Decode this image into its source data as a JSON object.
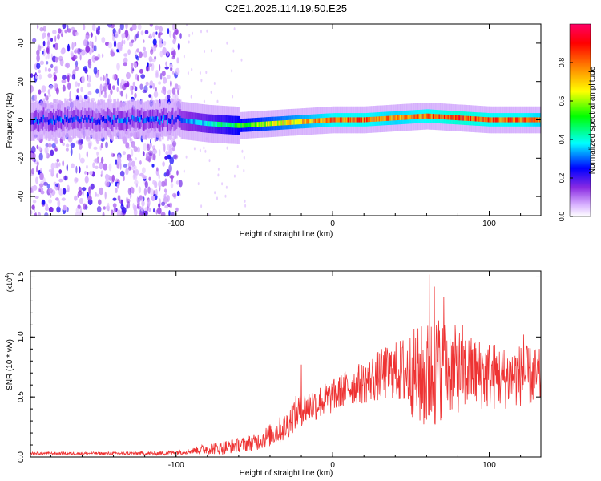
{
  "figure_title": "C2E1.2025.114.19.50.E25",
  "chart_data": [
    {
      "type": "heatmap",
      "title": "C2E1.2025.114.19.50.E25",
      "xlabel": "Height of straight line (km)",
      "ylabel": "Frequency (Hz)",
      "xlim": [
        -193,
        133
      ],
      "ylim": [
        -50,
        50
      ],
      "x_ticks": [
        -100,
        0,
        100
      ],
      "y_ticks": [
        -40,
        -20,
        0,
        20,
        40
      ],
      "x_tick_labels": [
        "-100",
        "0",
        "100"
      ],
      "y_tick_labels": [
        "-40",
        "-20",
        "0",
        "20",
        "40"
      ],
      "colorbar": {
        "label": "Normalized spectral amplitude",
        "range": [
          0,
          1
        ],
        "ticks": [
          0.0,
          0.2,
          0.4,
          0.6,
          0.8
        ],
        "tick_labels": [
          "0.0",
          "0.2",
          "0.4",
          "0.6",
          "0.8"
        ],
        "colors": [
          "#ffffff",
          "#d9b3ff",
          "#8a2be2",
          "#0000ff",
          "#00ffff",
          "#00ff00",
          "#ffff00",
          "#ff8000",
          "#ff0000",
          "#ff0066"
        ]
      },
      "ridge_line": {
        "description_values_x": [
          -100,
          -80,
          -60,
          -40,
          -20,
          0,
          20,
          40,
          60,
          80,
          100,
          120,
          133
        ],
        "frequency_hz": [
          0,
          -2,
          -3,
          -2,
          -1,
          0,
          0,
          1,
          2,
          1,
          0,
          0,
          0
        ],
        "amplitude": [
          0.3,
          0.4,
          0.55,
          0.65,
          0.75,
          0.85,
          0.85,
          0.8,
          0.85,
          0.9,
          0.85,
          0.85,
          0.8
        ]
      },
      "noise_region_x": [
        -193,
        -97
      ]
    },
    {
      "type": "line",
      "xlabel": "Height of straight line (km)",
      "ylabel": "SNR (10 * v/v)",
      "y_multiplier_label": "(x10",
      "y_multiplier_exp": "4",
      "xlim": [
        -193,
        133
      ],
      "ylim": [
        0,
        1.55
      ],
      "x_ticks": [
        -100,
        0,
        100
      ],
      "y_ticks": [
        0.0,
        0.5,
        1.0,
        1.5
      ],
      "x_tick_labels": [
        "-100",
        "0",
        "100"
      ],
      "y_tick_labels": [
        "0.0",
        "0.5",
        "1.0",
        "1.5"
      ],
      "series_color": "#ee3333",
      "series": [
        {
          "name": "SNR",
          "envelope_x": [
            -193,
            -150,
            -110,
            -90,
            -80,
            -70,
            -60,
            -50,
            -40,
            -30,
            -25,
            -20,
            -10,
            0,
            10,
            20,
            30,
            40,
            50,
            60,
            65,
            70,
            80,
            90,
            100,
            110,
            120,
            133
          ],
          "mean": [
            0.03,
            0.03,
            0.03,
            0.05,
            0.07,
            0.08,
            0.1,
            0.12,
            0.18,
            0.25,
            0.35,
            0.4,
            0.45,
            0.5,
            0.58,
            0.62,
            0.68,
            0.72,
            0.7,
            0.65,
            0.7,
            0.75,
            0.72,
            0.7,
            0.68,
            0.66,
            0.68,
            0.66
          ],
          "amplitude": [
            0.01,
            0.01,
            0.015,
            0.02,
            0.04,
            0.05,
            0.05,
            0.06,
            0.08,
            0.1,
            0.12,
            0.12,
            0.12,
            0.12,
            0.13,
            0.15,
            0.18,
            0.2,
            0.3,
            0.4,
            0.42,
            0.35,
            0.3,
            0.25,
            0.25,
            0.22,
            0.22,
            0.2
          ],
          "peaks": [
            [
              -20,
              0.77
            ],
            [
              62,
              1.52
            ],
            [
              65,
              1.42
            ],
            [
              71,
              1.33
            ],
            [
              83,
              1.1
            ],
            [
              122,
              1.02
            ]
          ]
        }
      ]
    }
  ]
}
